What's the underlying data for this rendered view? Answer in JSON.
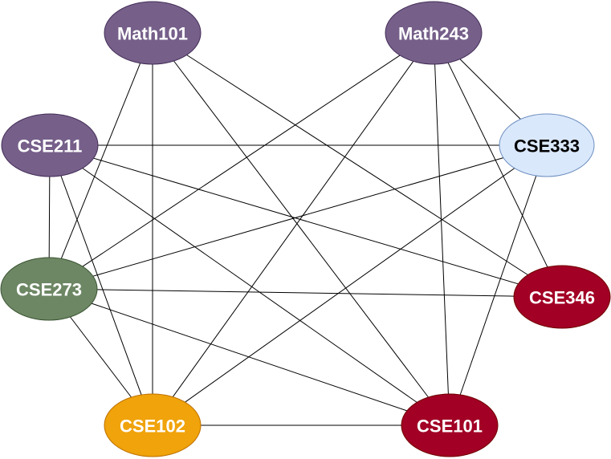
{
  "colors": {
    "math_purple": "#76608a",
    "math_purple_stroke": "#432d57",
    "cse333_fill": "#dae8fc",
    "cse333_stroke": "#6c8ebf",
    "cse273_fill": "#6d8764",
    "cse273_stroke": "#3a5431",
    "cse102_fill": "#f0a30a",
    "cse102_stroke": "#bd7000",
    "red_fill": "#a20025",
    "red_stroke": "#6f0000",
    "edge": "#000000",
    "label_light": "#ffffff",
    "label_dark": "#000000"
  },
  "nodes": {
    "math101": {
      "label": "Math101"
    },
    "math243": {
      "label": "Math243"
    },
    "cse211": {
      "label": "CSE211"
    },
    "cse333": {
      "label": "CSE333"
    },
    "cse273": {
      "label": "CSE273"
    },
    "cse346": {
      "label": "CSE346"
    },
    "cse102": {
      "label": "CSE102"
    },
    "cse101": {
      "label": "CSE101"
    }
  },
  "edges": [
    [
      "math101",
      "cse273"
    ],
    [
      "math101",
      "cse102"
    ],
    [
      "math101",
      "cse346"
    ],
    [
      "math101",
      "cse101"
    ],
    [
      "math243",
      "cse273"
    ],
    [
      "math243",
      "cse102"
    ],
    [
      "math243",
      "cse101"
    ],
    [
      "math243",
      "cse346"
    ],
    [
      "math243",
      "cse333"
    ],
    [
      "cse211",
      "cse333"
    ],
    [
      "cse211",
      "cse273"
    ],
    [
      "cse211",
      "cse346"
    ],
    [
      "cse211",
      "cse102"
    ],
    [
      "cse211",
      "cse101"
    ],
    [
      "cse333",
      "cse273"
    ],
    [
      "cse333",
      "cse102"
    ],
    [
      "cse333",
      "cse101"
    ],
    [
      "cse273",
      "cse346"
    ],
    [
      "cse273",
      "cse102"
    ],
    [
      "cse273",
      "cse101"
    ],
    [
      "cse102",
      "cse101"
    ]
  ]
}
